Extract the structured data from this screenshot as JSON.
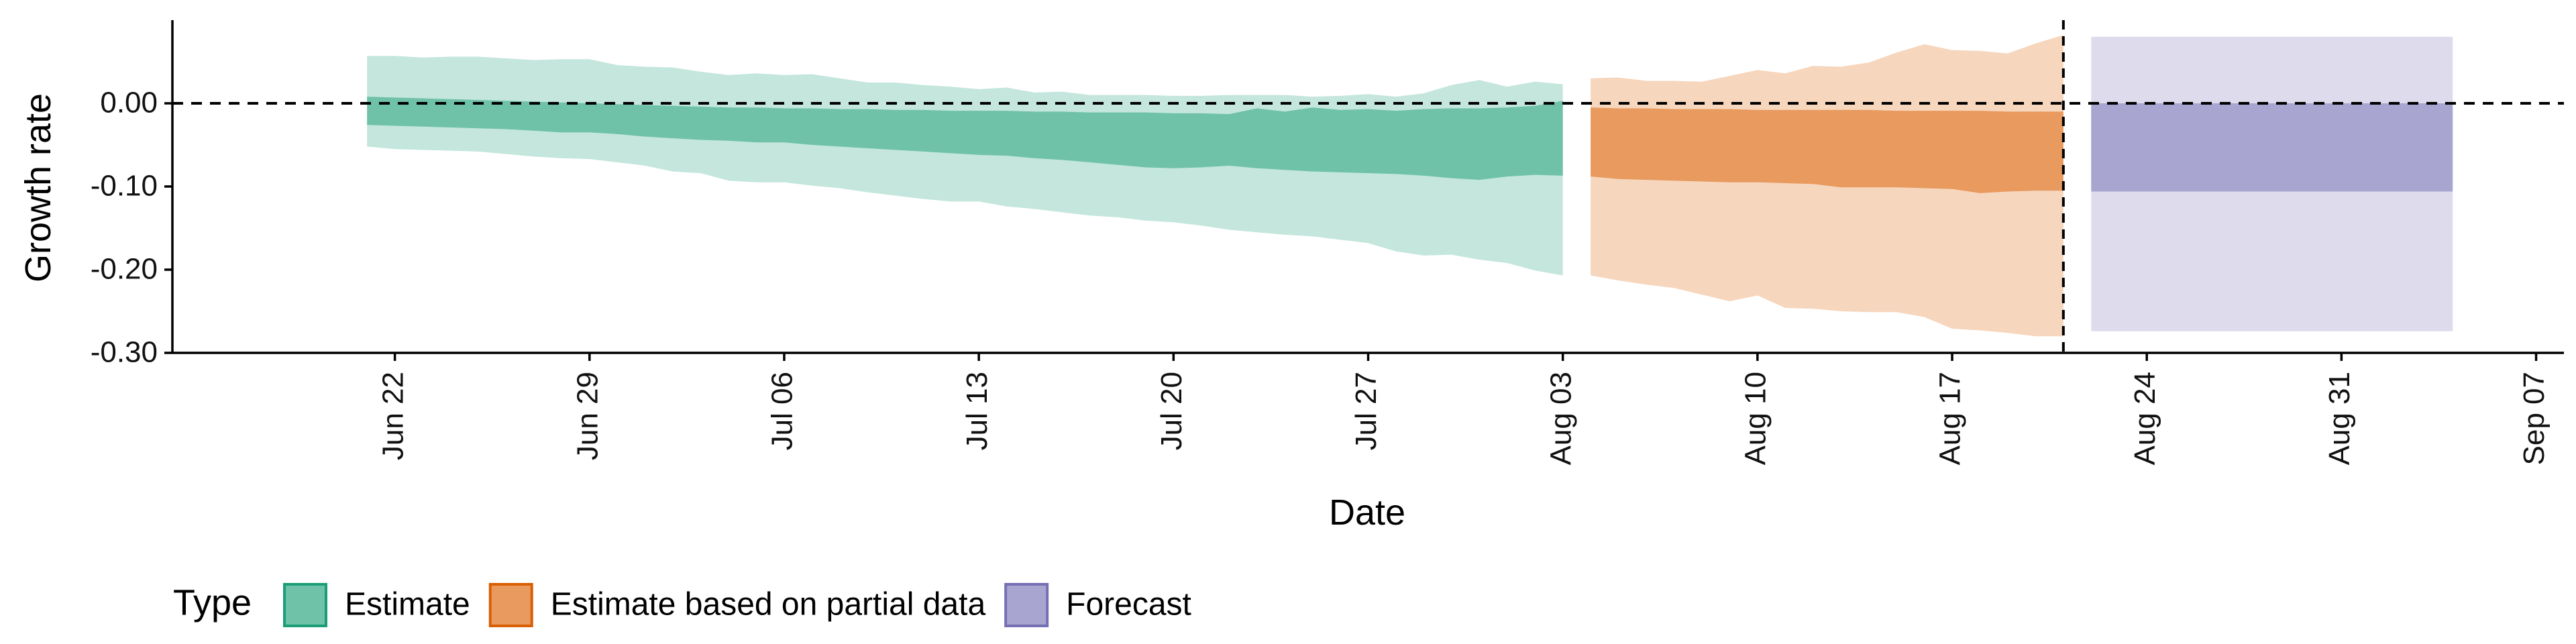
{
  "chart_data": {
    "type": "area",
    "xlabel": "Date",
    "ylabel": "Growth rate",
    "ylim": [
      -0.3,
      0.1
    ],
    "y_ticks": [
      0.0,
      -0.1,
      -0.2,
      -0.3
    ],
    "y_tick_labels": [
      "0.00",
      "-0.10",
      "-0.20",
      "-0.30"
    ],
    "x_domain": [
      "2020-06-14",
      "2020-09-08"
    ],
    "x_ticks": [
      "2020-06-22",
      "2020-06-29",
      "2020-07-06",
      "2020-07-13",
      "2020-07-20",
      "2020-07-27",
      "2020-08-03",
      "2020-08-10",
      "2020-08-17",
      "2020-08-24",
      "2020-08-31",
      "2020-09-07"
    ],
    "x_tick_labels": [
      "Jun 22",
      "Jun 29",
      "Jul 06",
      "Jul 13",
      "Jul 20",
      "Jul 27",
      "Aug 03",
      "Aug 10",
      "Aug 17",
      "Aug 24",
      "Aug 31",
      "Sep 07"
    ],
    "reference_lines": {
      "horizontal_y": 0.0,
      "vertical_x": "2020-08-21"
    },
    "legend": {
      "title": "Type",
      "position": "bottom-left",
      "entries": [
        "Estimate",
        "Estimate based on partial data",
        "Forecast"
      ]
    },
    "series": [
      {
        "name": "Estimate",
        "color_dark": "#6fc2a8",
        "color_light": "#c4e6dc",
        "color_edge": "#1b9e77",
        "x": [
          "2020-06-21",
          "2020-06-22",
          "2020-06-23",
          "2020-06-24",
          "2020-06-25",
          "2020-06-26",
          "2020-06-27",
          "2020-06-28",
          "2020-06-29",
          "2020-06-30",
          "2020-07-01",
          "2020-07-02",
          "2020-07-03",
          "2020-07-04",
          "2020-07-05",
          "2020-07-06",
          "2020-07-07",
          "2020-07-08",
          "2020-07-09",
          "2020-07-10",
          "2020-07-11",
          "2020-07-12",
          "2020-07-13",
          "2020-07-14",
          "2020-07-15",
          "2020-07-16",
          "2020-07-17",
          "2020-07-18",
          "2020-07-19",
          "2020-07-20",
          "2020-07-21",
          "2020-07-22",
          "2020-07-23",
          "2020-07-24",
          "2020-07-25",
          "2020-07-26",
          "2020-07-27",
          "2020-07-28",
          "2020-07-29",
          "2020-07-30",
          "2020-07-31",
          "2020-08-01",
          "2020-08-02",
          "2020-08-03"
        ],
        "outer_upper": [
          0.057,
          0.057,
          0.055,
          0.056,
          0.056,
          0.054,
          0.052,
          0.053,
          0.053,
          0.046,
          0.044,
          0.043,
          0.038,
          0.034,
          0.036,
          0.034,
          0.035,
          0.03,
          0.025,
          0.025,
          0.022,
          0.02,
          0.017,
          0.019,
          0.013,
          0.014,
          0.01,
          0.01,
          0.01,
          0.009,
          0.009,
          0.01,
          0.01,
          0.01,
          0.008,
          0.009,
          0.011,
          0.008,
          0.012,
          0.022,
          0.028,
          0.02,
          0.026,
          0.023
        ],
        "inner_upper": [
          0.008,
          0.007,
          0.006,
          0.005,
          0.004,
          0.003,
          0.002,
          0.001,
          0.0,
          -0.001,
          -0.002,
          -0.003,
          -0.004,
          -0.005,
          -0.005,
          -0.006,
          -0.006,
          -0.007,
          -0.007,
          -0.008,
          -0.008,
          -0.009,
          -0.009,
          -0.009,
          -0.01,
          -0.01,
          -0.011,
          -0.011,
          -0.011,
          -0.012,
          -0.012,
          -0.013,
          -0.006,
          -0.01,
          -0.005,
          -0.008,
          -0.007,
          -0.009,
          -0.007,
          -0.006,
          -0.006,
          -0.005,
          -0.003,
          0.003
        ],
        "inner_lower": [
          -0.026,
          -0.027,
          -0.028,
          -0.029,
          -0.03,
          -0.031,
          -0.033,
          -0.035,
          -0.035,
          -0.037,
          -0.04,
          -0.042,
          -0.044,
          -0.045,
          -0.047,
          -0.047,
          -0.05,
          -0.052,
          -0.054,
          -0.056,
          -0.058,
          -0.06,
          -0.062,
          -0.063,
          -0.066,
          -0.068,
          -0.071,
          -0.074,
          -0.077,
          -0.078,
          -0.077,
          -0.075,
          -0.078,
          -0.08,
          -0.082,
          -0.083,
          -0.084,
          -0.085,
          -0.087,
          -0.09,
          -0.092,
          -0.088,
          -0.086,
          -0.087
        ],
        "outer_lower": [
          -0.052,
          -0.055,
          -0.056,
          -0.057,
          -0.058,
          -0.061,
          -0.064,
          -0.066,
          -0.067,
          -0.071,
          -0.075,
          -0.082,
          -0.084,
          -0.093,
          -0.095,
          -0.095,
          -0.099,
          -0.102,
          -0.107,
          -0.111,
          -0.115,
          -0.118,
          -0.118,
          -0.124,
          -0.127,
          -0.131,
          -0.135,
          -0.137,
          -0.141,
          -0.143,
          -0.147,
          -0.152,
          -0.155,
          -0.158,
          -0.16,
          -0.164,
          -0.168,
          -0.178,
          -0.183,
          -0.182,
          -0.188,
          -0.192,
          -0.201,
          -0.207
        ]
      },
      {
        "name": "Estimate based on partial data",
        "color_dark": "#e89a5f",
        "color_light": "#f6d6bd",
        "color_edge": "#d95f02",
        "x": [
          "2020-08-04",
          "2020-08-05",
          "2020-08-06",
          "2020-08-07",
          "2020-08-08",
          "2020-08-09",
          "2020-08-10",
          "2020-08-11",
          "2020-08-12",
          "2020-08-13",
          "2020-08-14",
          "2020-08-15",
          "2020-08-16",
          "2020-08-17",
          "2020-08-18",
          "2020-08-19",
          "2020-08-20",
          "2020-08-21"
        ],
        "outer_upper": [
          0.03,
          0.031,
          0.027,
          0.027,
          0.026,
          0.033,
          0.04,
          0.036,
          0.045,
          0.044,
          0.049,
          0.061,
          0.071,
          0.064,
          0.063,
          0.06,
          0.072,
          0.082
        ],
        "inner_upper": [
          -0.005,
          -0.006,
          -0.006,
          -0.007,
          -0.007,
          -0.007,
          -0.008,
          -0.008,
          -0.008,
          -0.008,
          -0.008,
          -0.009,
          -0.009,
          -0.009,
          -0.009,
          -0.01,
          -0.01,
          -0.01
        ],
        "inner_lower": [
          -0.088,
          -0.091,
          -0.092,
          -0.093,
          -0.094,
          -0.095,
          -0.095,
          -0.096,
          -0.097,
          -0.101,
          -0.101,
          -0.101,
          -0.102,
          -0.103,
          -0.108,
          -0.106,
          -0.105,
          -0.105
        ],
        "outer_lower": [
          -0.207,
          -0.213,
          -0.218,
          -0.222,
          -0.23,
          -0.238,
          -0.231,
          -0.246,
          -0.247,
          -0.25,
          -0.251,
          -0.251,
          -0.257,
          -0.271,
          -0.273,
          -0.276,
          -0.28,
          -0.28
        ]
      },
      {
        "name": "Forecast",
        "color_dark": "#a9a5d1",
        "color_light": "#dddbec",
        "color_edge": "#7570b3",
        "x": [
          "2020-08-22",
          "2020-09-04"
        ],
        "outer_upper": [
          0.08,
          0.08
        ],
        "inner_upper": [
          0.0,
          0.0
        ],
        "inner_lower": [
          -0.106,
          -0.106
        ],
        "outer_lower": [
          -0.274,
          -0.274
        ]
      }
    ]
  }
}
